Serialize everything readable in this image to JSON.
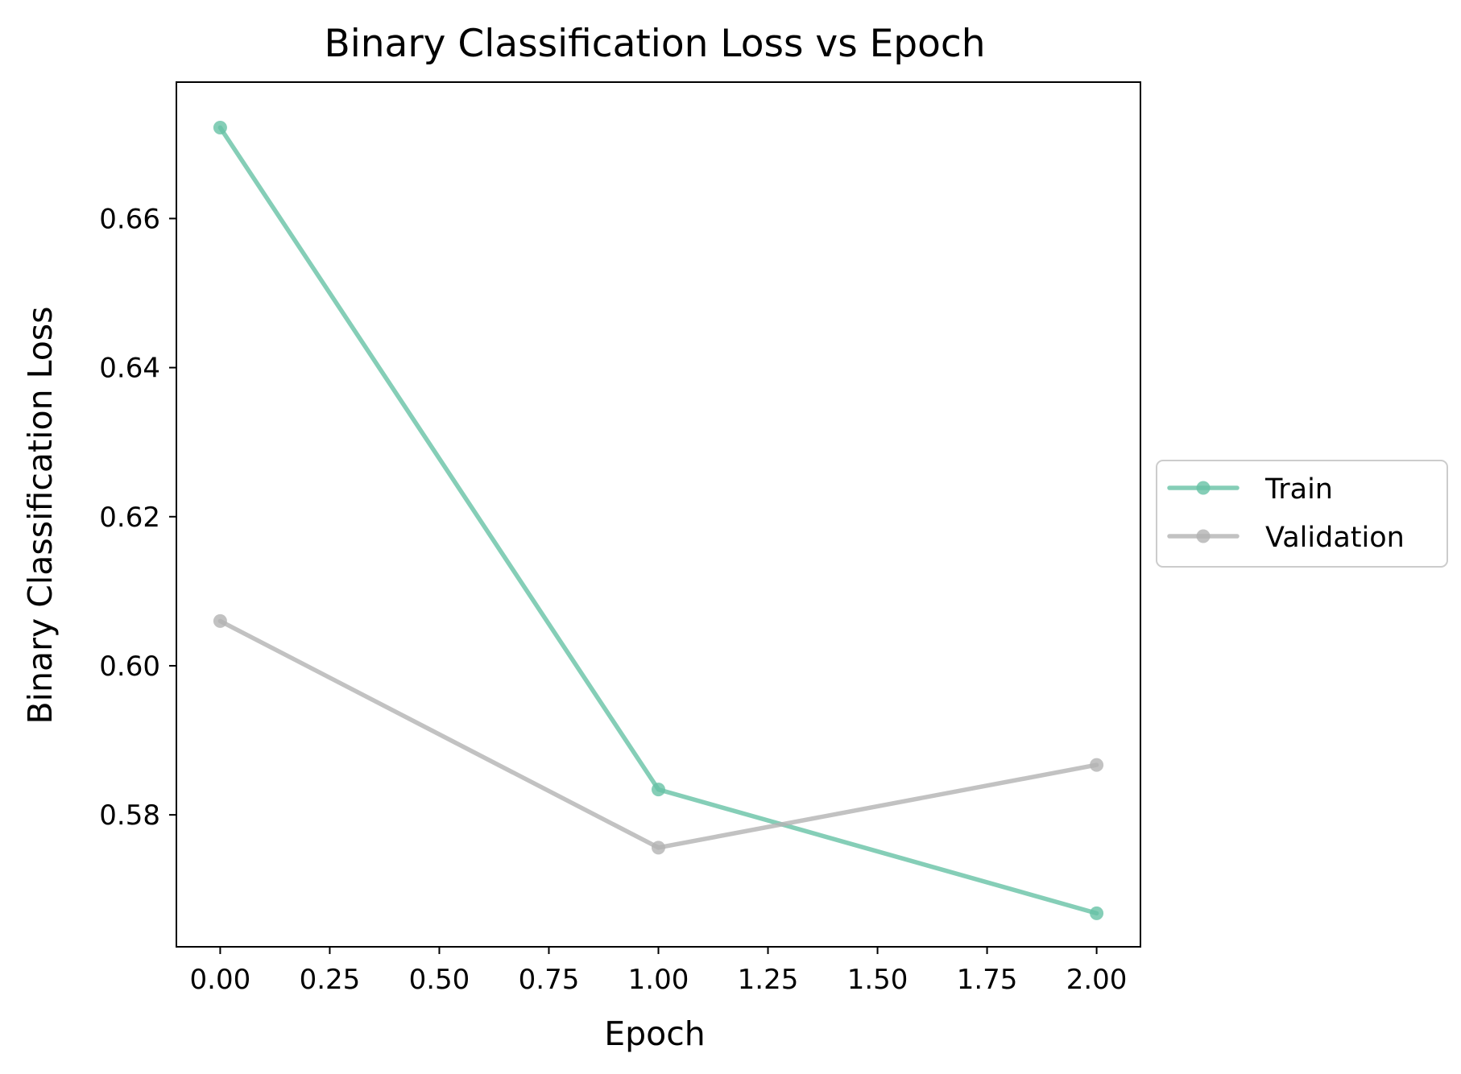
{
  "chart_data": {
    "type": "line",
    "title": "Binary Classification Loss vs Epoch",
    "xlabel": "Epoch",
    "ylabel": "Binary Classification Loss",
    "xlim": [
      -0.1,
      2.1
    ],
    "ylim": [
      0.5623,
      0.6783
    ],
    "x_ticks": [
      0.0,
      0.25,
      0.5,
      0.75,
      1.0,
      1.25,
      1.5,
      1.75,
      2.0
    ],
    "x_tick_labels": [
      "0.00",
      "0.25",
      "0.50",
      "0.75",
      "1.00",
      "1.25",
      "1.50",
      "1.75",
      "2.00"
    ],
    "y_ticks": [
      0.58,
      0.6,
      0.62,
      0.64,
      0.66
    ],
    "y_tick_labels": [
      "0.58",
      "0.60",
      "0.62",
      "0.64",
      "0.66"
    ],
    "grid": false,
    "legend_position": "center-left outside right",
    "series": [
      {
        "name": "Train",
        "color": "#66c2a5",
        "x": [
          0,
          1,
          2
        ],
        "y": [
          0.6722,
          0.5834,
          0.5668
        ]
      },
      {
        "name": "Validation",
        "color": "#b3b3b3",
        "x": [
          0,
          1,
          2
        ],
        "y": [
          0.606,
          0.5756,
          0.5867
        ]
      }
    ]
  }
}
